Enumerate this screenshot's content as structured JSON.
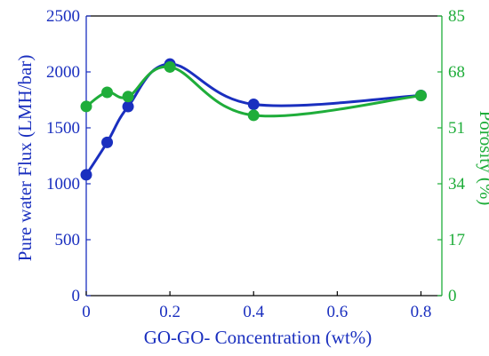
{
  "chart_data": {
    "type": "line",
    "xlabel": "GO-GO-  Concentration (wt%)",
    "ylabel_left": "Pure water Flux (LMH/bar)",
    "ylabel_right": "Porosity (%)",
    "xlim": [
      0,
      0.85
    ],
    "ylim_left": [
      0,
      2500
    ],
    "ylim_right": [
      0,
      85
    ],
    "x_ticks": [
      "0",
      "0.2",
      "0.4",
      "0.6",
      "0.8"
    ],
    "x_tick_values": [
      0,
      0.2,
      0.4,
      0.6,
      0.8
    ],
    "y_left_ticks": [
      "0",
      "500",
      "1000",
      "1500",
      "2000",
      "2500"
    ],
    "y_left_tick_values": [
      0,
      500,
      1000,
      1500,
      2000,
      2500
    ],
    "y_right_ticks": [
      "0",
      "17",
      "34",
      "51",
      "68",
      "85"
    ],
    "y_right_tick_values": [
      0,
      17,
      34,
      51,
      68,
      85
    ],
    "grid": false,
    "series": [
      {
        "axis": "left",
        "color": "#1a2fbf",
        "marker": "circle",
        "x": [
          0,
          0.05,
          0.1,
          0.2,
          0.4,
          0.8
        ],
        "y": [
          1080,
          1370,
          1690,
          2070,
          1710,
          1790
        ]
      },
      {
        "axis": "right",
        "color": "#1fad3a",
        "marker": "circle",
        "x": [
          0,
          0.05,
          0.1,
          0.2,
          0.4,
          0.8
        ],
        "y": [
          57.5,
          61.8,
          60.5,
          69.5,
          54.8,
          60.8
        ]
      }
    ]
  }
}
